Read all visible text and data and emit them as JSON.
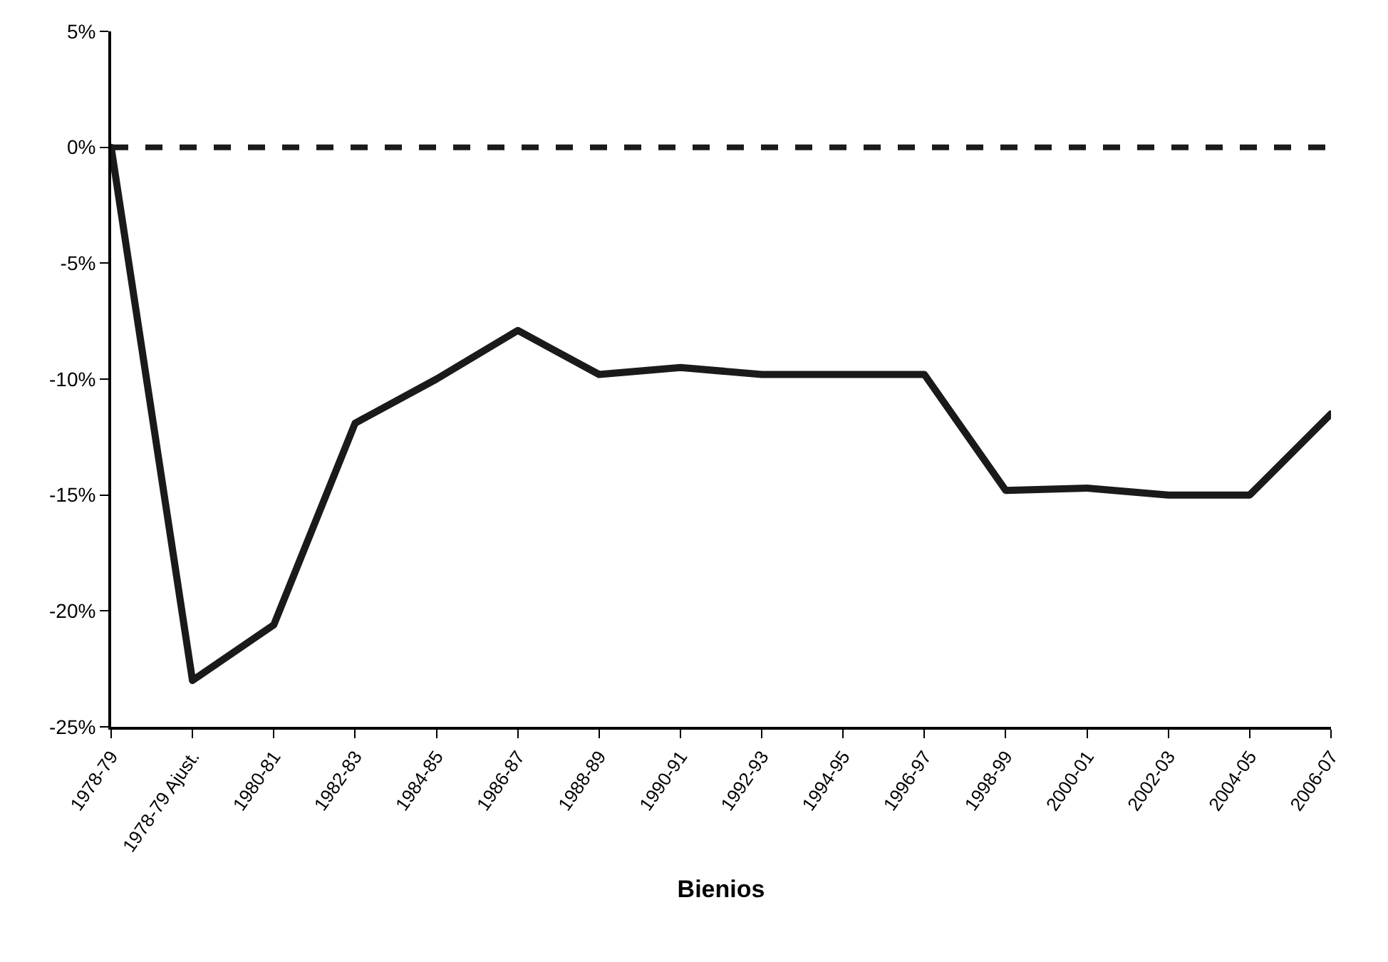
{
  "chart_data": {
    "type": "line",
    "xlabel": "Bienios",
    "categories": [
      "1978-79",
      "1978-79 Ajust.",
      "1980-81",
      "1982-83",
      "1984-85",
      "1986-87",
      "1988-89",
      "1990-91",
      "1992-93",
      "1994-95",
      "1996-97",
      "1998-99",
      "2000-01",
      "2002-03",
      "2004-05",
      "2006-07"
    ],
    "series": [
      {
        "color": "#1a1a1a",
        "values": [
          0,
          -23.0,
          -20.6,
          -11.9,
          -10.0,
          -7.9,
          -9.8,
          -9.5,
          -9.8,
          -9.8,
          -9.8,
          -14.8,
          -14.7,
          -15.0,
          -15.0,
          -11.5
        ]
      }
    ],
    "ylim": [
      -25,
      5
    ],
    "yticks": [
      {
        "value": -25,
        "label": "-25%"
      },
      {
        "value": -20,
        "label": "-20%"
      },
      {
        "value": -15,
        "label": "-15%"
      },
      {
        "value": -10,
        "label": "-10%"
      },
      {
        "value": -5,
        "label": "-5%"
      },
      {
        "value": 0,
        "label": "0%"
      },
      {
        "value": 5,
        "label": "5%"
      }
    ],
    "ref_lines": [
      {
        "axis": "y",
        "value": 0,
        "color": "#1a1a1a",
        "line_style": "dashed"
      }
    ],
    "grid": false,
    "legend": false,
    "marker": "none",
    "line_style": "solid"
  }
}
